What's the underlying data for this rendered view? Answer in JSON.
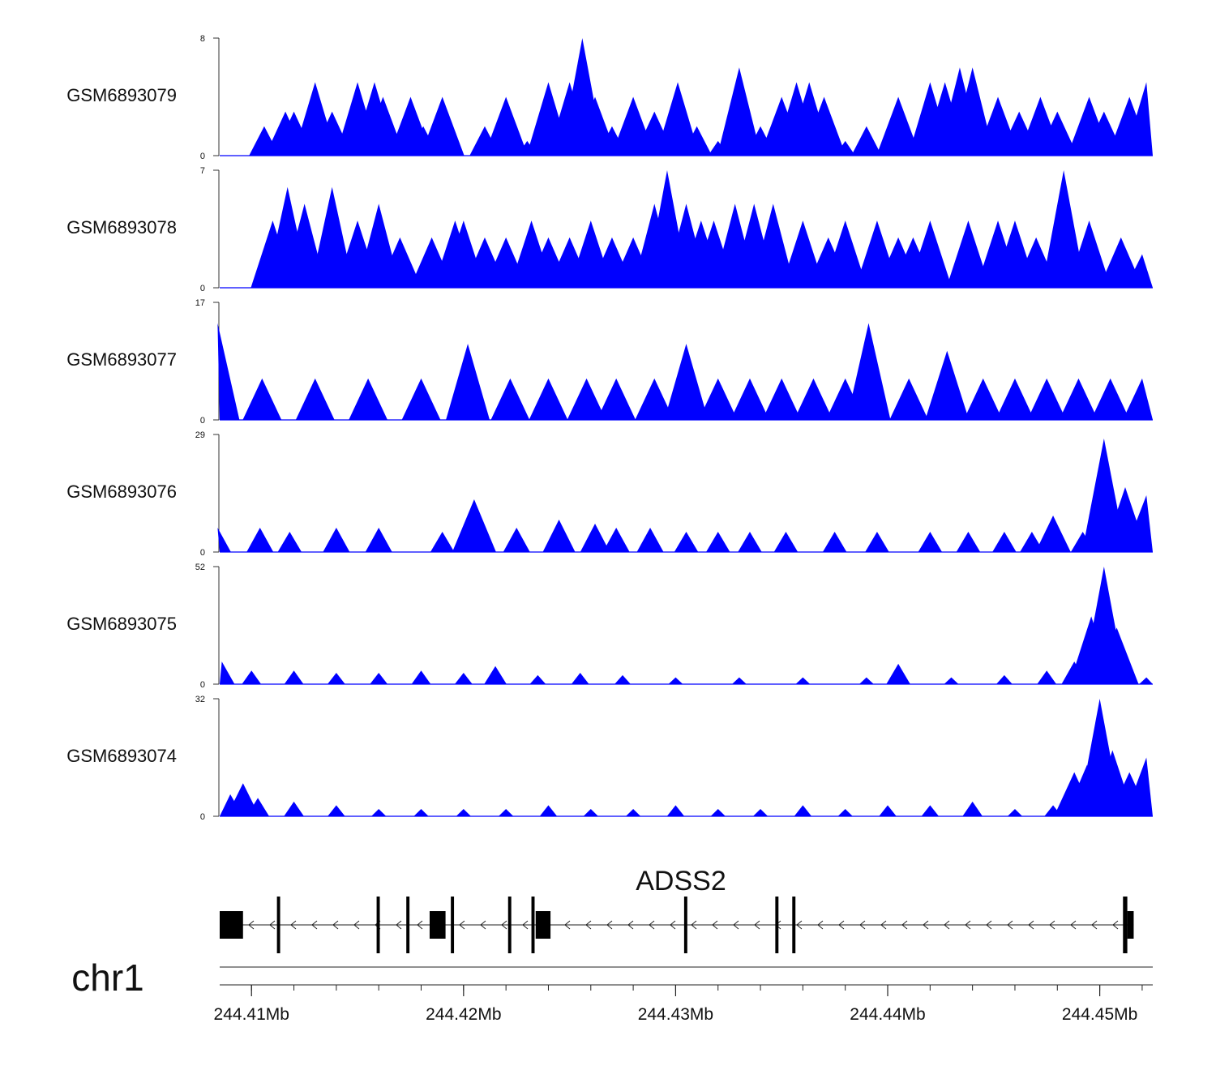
{
  "chart_data": {
    "type": "area",
    "title": "",
    "region": {
      "chrom": "chr1",
      "start_mb": 244.4085,
      "end_mb": 244.4525
    },
    "series_color": "#0000ff",
    "tracks": [
      {
        "name": "GSM6893079",
        "ymax": 8,
        "ymin": 0,
        "peaks": [
          [
            244.4106,
            2
          ],
          [
            244.4112,
            1
          ],
          [
            244.4116,
            3
          ],
          [
            244.412,
            3
          ],
          [
            244.4125,
            2
          ],
          [
            244.413,
            5
          ],
          [
            244.4138,
            3
          ],
          [
            244.415,
            5
          ],
          [
            244.4158,
            5
          ],
          [
            244.4162,
            4
          ],
          [
            244.4175,
            4
          ],
          [
            244.4181,
            2
          ],
          [
            244.419,
            4
          ],
          [
            244.421,
            2
          ],
          [
            244.422,
            4
          ],
          [
            244.423,
            1
          ],
          [
            244.424,
            5
          ],
          [
            244.425,
            5
          ],
          [
            244.4256,
            8
          ],
          [
            244.4262,
            4
          ],
          [
            244.427,
            2
          ],
          [
            244.428,
            4
          ],
          [
            244.429,
            3
          ],
          [
            244.4301,
            5
          ],
          [
            244.431,
            2
          ],
          [
            244.432,
            1
          ],
          [
            244.433,
            6
          ],
          [
            244.434,
            2
          ],
          [
            244.435,
            4
          ],
          [
            244.4357,
            5
          ],
          [
            244.4363,
            5
          ],
          [
            244.437,
            4
          ],
          [
            244.438,
            1
          ],
          [
            244.439,
            2
          ],
          [
            244.4405,
            4
          ],
          [
            244.442,
            5
          ],
          [
            244.4427,
            5
          ],
          [
            244.4434,
            6
          ],
          [
            244.444,
            6
          ],
          [
            244.4452,
            4
          ],
          [
            244.4462,
            3
          ],
          [
            244.4472,
            4
          ],
          [
            244.448,
            3
          ],
          [
            244.4495,
            4
          ],
          [
            244.4502,
            3
          ],
          [
            244.4514,
            4
          ],
          [
            244.4522,
            5
          ]
        ]
      },
      {
        "name": "GSM6893078",
        "ymax": 7,
        "ymin": 0,
        "peaks": [
          [
            244.411,
            4
          ],
          [
            244.4117,
            6
          ],
          [
            244.4125,
            5
          ],
          [
            244.4138,
            6
          ],
          [
            244.415,
            4
          ],
          [
            244.416,
            5
          ],
          [
            244.417,
            3
          ],
          [
            244.4185,
            3
          ],
          [
            244.4196,
            4
          ],
          [
            244.42,
            4
          ],
          [
            244.421,
            3
          ],
          [
            244.422,
            3
          ],
          [
            244.4232,
            4
          ],
          [
            244.424,
            3
          ],
          [
            244.425,
            3
          ],
          [
            244.426,
            4
          ],
          [
            244.427,
            3
          ],
          [
            244.428,
            3
          ],
          [
            244.429,
            5
          ],
          [
            244.4296,
            7
          ],
          [
            244.4305,
            5
          ],
          [
            244.4312,
            4
          ],
          [
            244.4318,
            4
          ],
          [
            244.4328,
            5
          ],
          [
            244.4337,
            5
          ],
          [
            244.4346,
            5
          ],
          [
            244.436,
            4
          ],
          [
            244.4372,
            3
          ],
          [
            244.438,
            4
          ],
          [
            244.4395,
            4
          ],
          [
            244.4405,
            3
          ],
          [
            244.4412,
            3
          ],
          [
            244.442,
            4
          ],
          [
            244.4438,
            4
          ],
          [
            244.4452,
            4
          ],
          [
            244.446,
            4
          ],
          [
            244.447,
            3
          ],
          [
            244.4483,
            7
          ],
          [
            244.4495,
            4
          ],
          [
            244.451,
            3
          ],
          [
            244.452,
            2
          ]
        ]
      },
      {
        "name": "GSM6893077",
        "ymax": 17,
        "ymin": 0,
        "peaks": [
          [
            244.4084,
            14
          ],
          [
            244.4105,
            6
          ],
          [
            244.413,
            6
          ],
          [
            244.4155,
            6
          ],
          [
            244.418,
            6
          ],
          [
            244.4202,
            11
          ],
          [
            244.4222,
            6
          ],
          [
            244.424,
            6
          ],
          [
            244.4258,
            6
          ],
          [
            244.4272,
            6
          ],
          [
            244.429,
            6
          ],
          [
            244.4305,
            11
          ],
          [
            244.432,
            6
          ],
          [
            244.4335,
            6
          ],
          [
            244.435,
            6
          ],
          [
            244.4365,
            6
          ],
          [
            244.438,
            6
          ],
          [
            244.4391,
            14
          ],
          [
            244.441,
            6
          ],
          [
            244.4428,
            10
          ],
          [
            244.4445,
            6
          ],
          [
            244.446,
            6
          ],
          [
            244.4475,
            6
          ],
          [
            244.449,
            6
          ],
          [
            244.4505,
            6
          ],
          [
            244.452,
            6
          ]
        ]
      },
      {
        "name": "GSM6893076",
        "ymax": 29,
        "ymin": 0,
        "peaks": [
          [
            244.4084,
            6
          ],
          [
            244.4104,
            6
          ],
          [
            244.4118,
            5
          ],
          [
            244.414,
            6
          ],
          [
            244.416,
            6
          ],
          [
            244.419,
            5
          ],
          [
            244.4205,
            13
          ],
          [
            244.4225,
            6
          ],
          [
            244.4245,
            8
          ],
          [
            244.4262,
            7
          ],
          [
            244.4272,
            6
          ],
          [
            244.4288,
            6
          ],
          [
            244.4305,
            5
          ],
          [
            244.432,
            5
          ],
          [
            244.4335,
            5
          ],
          [
            244.4352,
            5
          ],
          [
            244.4375,
            5
          ],
          [
            244.4395,
            5
          ],
          [
            244.442,
            5
          ],
          [
            244.4438,
            5
          ],
          [
            244.4455,
            5
          ],
          [
            244.4468,
            5
          ],
          [
            244.4478,
            9
          ],
          [
            244.4492,
            5
          ],
          [
            244.4502,
            28
          ],
          [
            244.4512,
            16
          ],
          [
            244.4522,
            14
          ]
        ]
      },
      {
        "name": "GSM6893075",
        "ymax": 52,
        "ymin": 0,
        "peaks": [
          [
            244.4086,
            10
          ],
          [
            244.41,
            6
          ],
          [
            244.412,
            6
          ],
          [
            244.414,
            5
          ],
          [
            244.416,
            5
          ],
          [
            244.418,
            6
          ],
          [
            244.42,
            5
          ],
          [
            244.4215,
            8
          ],
          [
            244.4235,
            4
          ],
          [
            244.4255,
            5
          ],
          [
            244.4275,
            4
          ],
          [
            244.43,
            3
          ],
          [
            244.433,
            3
          ],
          [
            244.436,
            3
          ],
          [
            244.439,
            3
          ],
          [
            244.4405,
            9
          ],
          [
            244.443,
            3
          ],
          [
            244.4455,
            4
          ],
          [
            244.4475,
            6
          ],
          [
            244.4488,
            10
          ],
          [
            244.4496,
            30
          ],
          [
            244.4502,
            52
          ],
          [
            244.4508,
            25
          ],
          [
            244.4522,
            3
          ]
        ]
      },
      {
        "name": "GSM6893074",
        "ymax": 32,
        "ymin": 0,
        "peaks": [
          [
            244.409,
            6
          ],
          [
            244.4096,
            9
          ],
          [
            244.4103,
            5
          ],
          [
            244.412,
            4
          ],
          [
            244.414,
            3
          ],
          [
            244.416,
            2
          ],
          [
            244.418,
            2
          ],
          [
            244.42,
            2
          ],
          [
            244.422,
            2
          ],
          [
            244.424,
            3
          ],
          [
            244.426,
            2
          ],
          [
            244.428,
            2
          ],
          [
            244.43,
            3
          ],
          [
            244.432,
            2
          ],
          [
            244.434,
            2
          ],
          [
            244.436,
            3
          ],
          [
            244.438,
            2
          ],
          [
            244.44,
            3
          ],
          [
            244.442,
            3
          ],
          [
            244.444,
            4
          ],
          [
            244.446,
            2
          ],
          [
            244.4478,
            3
          ],
          [
            244.4488,
            12
          ],
          [
            244.4494,
            14
          ],
          [
            244.45,
            32
          ],
          [
            244.4506,
            18
          ],
          [
            244.4514,
            12
          ],
          [
            244.4522,
            16
          ]
        ]
      }
    ],
    "gene": {
      "name": "ADSS2",
      "strand": "-",
      "start_mb": 244.4085,
      "end_mb": 244.4516,
      "exons": [
        [
          244.4085,
          244.4096
        ],
        [
          244.4112,
          244.41135
        ],
        [
          244.4159,
          244.41605
        ],
        [
          244.4173,
          244.41745
        ],
        [
          244.4184,
          244.41915
        ],
        [
          244.4194,
          244.41955
        ],
        [
          244.4221,
          244.42225
        ],
        [
          244.4232,
          244.42335
        ],
        [
          244.4234,
          244.4241
        ],
        [
          244.4304,
          244.43055
        ],
        [
          244.4347,
          244.43485
        ],
        [
          244.4355,
          244.43565
        ],
        [
          244.4511,
          244.4513
        ],
        [
          244.4513,
          244.4516
        ]
      ]
    },
    "xaxis": {
      "chrom_label": "chr1",
      "tick_values": [
        244.41,
        244.42,
        244.43,
        244.44,
        244.45
      ],
      "tick_labels": [
        "244.41Mb",
        "244.42Mb",
        "244.43Mb",
        "244.44Mb",
        "244.45Mb"
      ],
      "minor_step_mb": 0.002
    }
  }
}
